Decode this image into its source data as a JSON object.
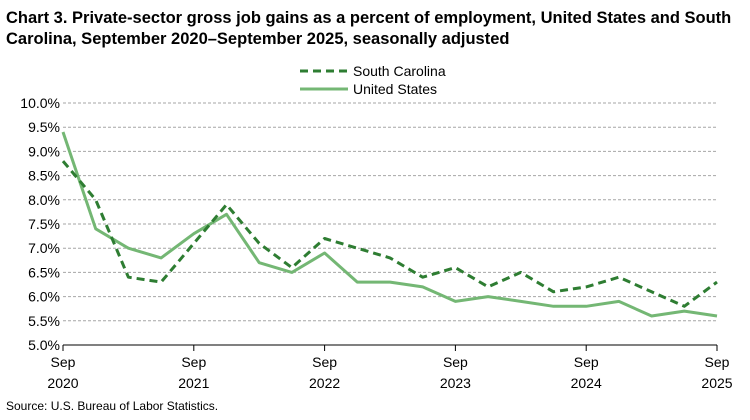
{
  "title": "Chart 3. Private-sector gross job gains as a percent of employment, United States and South Carolina, September 2020–September 2025, seasonally adjusted",
  "source": "Source: U.S. Bureau of Labor Statistics.",
  "chart_data": {
    "type": "line",
    "title": "Chart 3. Private-sector gross job gains as a percent of employment, United States and South Carolina, September 2020–September 2025, seasonally adjusted",
    "xlabel": "",
    "ylabel": "",
    "x": [
      "Sep 2020",
      "Dec 2020",
      "Mar 2021",
      "Jun 2021",
      "Sep 2021",
      "Dec 2021",
      "Mar 2022",
      "Jun 2022",
      "Sep 2022",
      "Dec 2022",
      "Mar 2023",
      "Jun 2023",
      "Sep 2023",
      "Dec 2023",
      "Mar 2024",
      "Jun 2024",
      "Sep 2024",
      "Dec 2024",
      "Mar 2025",
      "Jun 2025",
      "Sep 2025"
    ],
    "x_tick_labels": [
      {
        "month": "Sep",
        "year": "2020",
        "index": 0
      },
      {
        "month": "Sep",
        "year": "2021",
        "index": 4
      },
      {
        "month": "Sep",
        "year": "2022",
        "index": 8
      },
      {
        "month": "Sep",
        "year": "2023",
        "index": 12
      },
      {
        "month": "Sep",
        "year": "2024",
        "index": 16
      },
      {
        "month": "Sep",
        "year": "2025",
        "index": 20
      }
    ],
    "y_ticks": [
      "5.0%",
      "5.5%",
      "6.0%",
      "6.5%",
      "7.0%",
      "7.5%",
      "8.0%",
      "8.5%",
      "9.0%",
      "9.5%",
      "10.0%"
    ],
    "ylim": [
      5.0,
      10.0
    ],
    "grid": "horizontal dashed",
    "legend_position": "top-center",
    "series": [
      {
        "name": "South Carolina",
        "style": "dashed",
        "color": "#2e7d32",
        "values": [
          8.8,
          8.0,
          6.4,
          6.3,
          7.1,
          7.9,
          7.1,
          6.6,
          7.2,
          7.0,
          6.8,
          6.4,
          6.6,
          6.2,
          6.5,
          6.1,
          6.2,
          6.4,
          6.1,
          5.8,
          6.3
        ]
      },
      {
        "name": "United States",
        "style": "solid",
        "color": "#74b774",
        "values": [
          9.4,
          7.4,
          7.0,
          6.8,
          7.3,
          7.7,
          6.7,
          6.5,
          6.9,
          6.3,
          6.3,
          6.2,
          5.9,
          6.0,
          5.9,
          5.8,
          5.8,
          5.9,
          5.6,
          5.7,
          5.6
        ]
      }
    ]
  }
}
